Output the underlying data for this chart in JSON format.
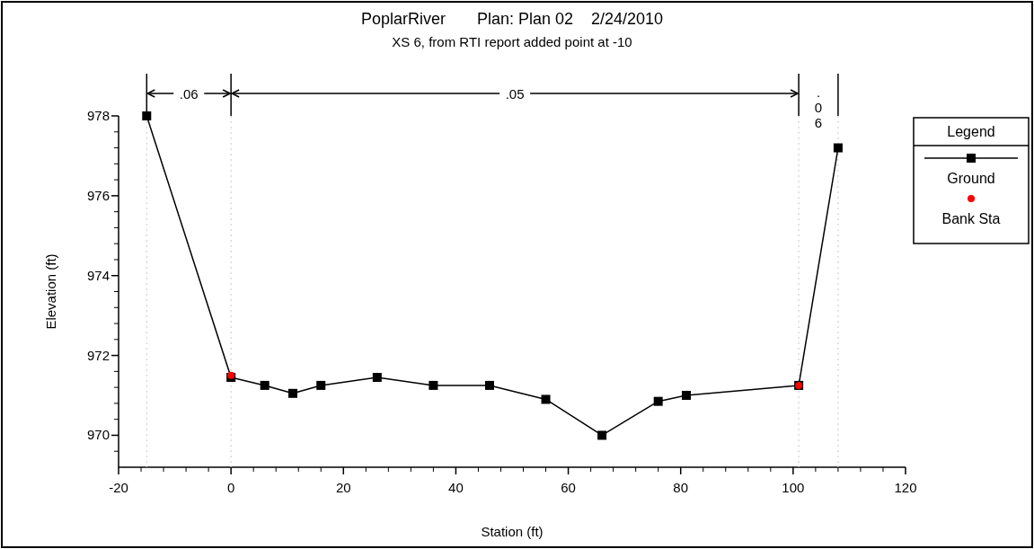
{
  "chart_data": {
    "type": "line",
    "title": "PoplarRiver       Plan: Plan 02    2/24/2010",
    "subtitle": "XS 6, from RTI report added point at -10",
    "xlabel": "Station (ft)",
    "ylabel": "Elevation (ft)",
    "legend_title": "Legend",
    "legend": "right",
    "xlim": [
      -20,
      120
    ],
    "xticks": [
      -20,
      0,
      20,
      40,
      60,
      80,
      100,
      120
    ],
    "ylim": [
      969.2,
      978
    ],
    "yticks": [
      970,
      972,
      974,
      976,
      978
    ],
    "grid": false,
    "ref_lines": [
      {
        "axis": "x",
        "value": -15
      },
      {
        "axis": "x",
        "value": 0
      },
      {
        "axis": "x",
        "value": 101
      },
      {
        "axis": "x",
        "value": 108
      }
    ],
    "annotations": [
      ".06",
      ".05",
      ".06"
    ],
    "series": [
      {
        "name": "Ground",
        "type": "line",
        "color": "#000000",
        "marker": "square",
        "x": [
          -15,
          0,
          6,
          11,
          16,
          26,
          36,
          46,
          56,
          66,
          76,
          81,
          101,
          108
        ],
        "values": [
          978,
          971.45,
          971.25,
          971.05,
          971.25,
          971.45,
          971.25,
          971.25,
          970.9,
          970,
          970.85,
          971,
          971.25,
          977.2
        ]
      },
      {
        "name": "Bank Sta",
        "type": "scatter",
        "color": "#ff0000",
        "marker": "circle",
        "x": [
          0,
          101
        ],
        "values": [
          971.5,
          971.25
        ]
      }
    ]
  }
}
